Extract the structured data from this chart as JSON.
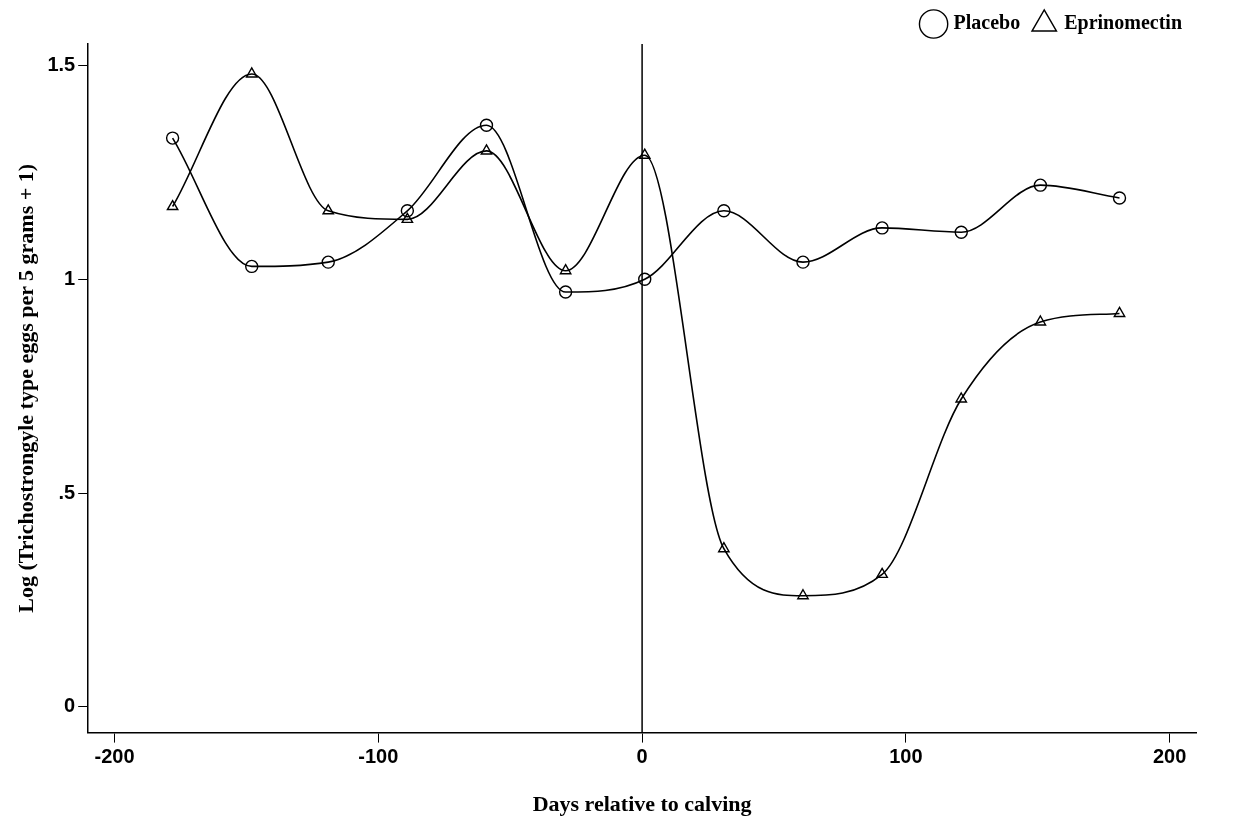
{
  "chart_data": {
    "type": "line",
    "xlabel": "Days relative to calving",
    "ylabel": "Log (Trichostrongyle type eggs per 5 grams + 1)",
    "x": [
      -178,
      -148,
      -119,
      -89,
      -59,
      -29,
      1,
      31,
      61,
      91,
      121,
      151,
      181
    ],
    "series": [
      {
        "name": "Placebo",
        "color": "#000000",
        "marker": "circle",
        "values": [
          1.33,
          1.03,
          1.04,
          1.16,
          1.36,
          0.97,
          1.0,
          1.16,
          1.04,
          1.12,
          1.11,
          1.22,
          1.19
        ]
      },
      {
        "name": "Eprinomectin",
        "color": "#000000",
        "marker": "triangle",
        "values": [
          1.17,
          1.48,
          1.16,
          1.14,
          1.3,
          1.02,
          1.29,
          0.37,
          0.26,
          0.31,
          0.72,
          0.9,
          0.92
        ]
      }
    ],
    "xlim": [
      -210,
      210
    ],
    "xticks": [
      -200,
      -100,
      0,
      100,
      200
    ],
    "ylim": [
      -0.06,
      1.55
    ],
    "yticks": [
      0,
      {
        "value": 0.5,
        "label": ".5"
      },
      1,
      1.5
    ],
    "ref_lines": [
      {
        "axis": "x",
        "value": 0,
        "color": "#000000"
      }
    ],
    "grid": false,
    "legend": "top right",
    "line_style": "solid"
  }
}
